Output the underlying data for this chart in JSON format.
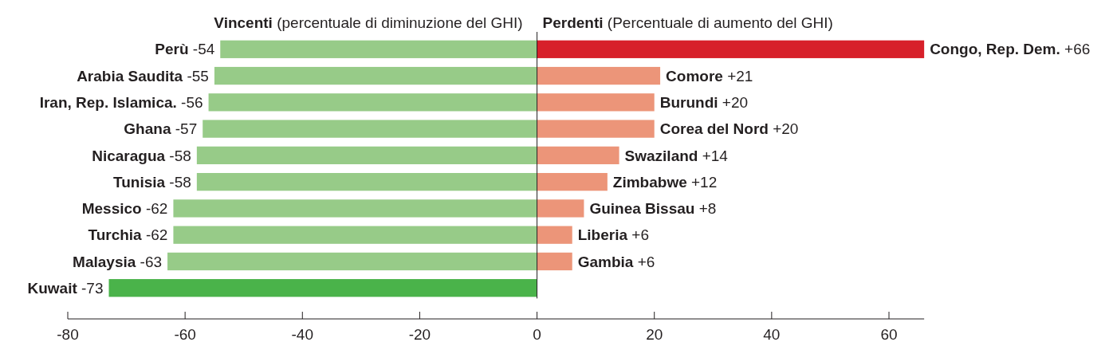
{
  "chart_data": {
    "type": "bar",
    "orientation": "horizontal",
    "stacked": true,
    "categories": [
      null,
      null,
      null,
      null,
      null,
      null,
      null,
      null,
      null,
      null
    ],
    "series": [
      {
        "name": "Vincenti (percentuale di diminuzione del GHI)",
        "values": [
          -54,
          -55,
          -56,
          -57,
          -58,
          -58,
          -62,
          -62,
          -63,
          -73
        ],
        "colors": [
          "#97cb88",
          "#97cb88",
          "#97cb88",
          "#97cb88",
          "#97cb88",
          "#97cb88",
          "#97cb88",
          "#97cb88",
          "#97cb88",
          "#4ab34a"
        ],
        "value_labels": [
          "Perù -54",
          "Arabia Saudita -55",
          "Iran, Rep. Islamica. -56",
          "Ghana -57",
          "Nicaragua -58",
          "Tunisia -58",
          "Messico -62",
          "Turchia -62",
          "Malaysia -63",
          "Kuwait -73"
        ]
      },
      {
        "name": "Perdenti (Percentuale di aumento del GHI)",
        "values": [
          66,
          21,
          20,
          20,
          14,
          12,
          8,
          6,
          6,
          null
        ],
        "colors": [
          "#d7202a",
          "#ec9579",
          "#ec9579",
          "#ec9579",
          "#ec9579",
          "#ec9579",
          "#ec9579",
          "#ec9579",
          "#ec9579",
          null
        ],
        "value_labels": [
          "Congo, Rep. Dem. +66",
          "Comore +21",
          "Burundi +20",
          "Corea del Nord +20",
          "Swaziland +14",
          "Zimbabwe +12",
          "Guinea Bissau +8",
          "Liberia +6",
          "Gambia +6",
          null
        ]
      }
    ],
    "xlim": [
      -80,
      66
    ],
    "xticks": [
      -80,
      -60,
      -40,
      -20,
      0,
      20,
      40,
      60
    ]
  }
}
